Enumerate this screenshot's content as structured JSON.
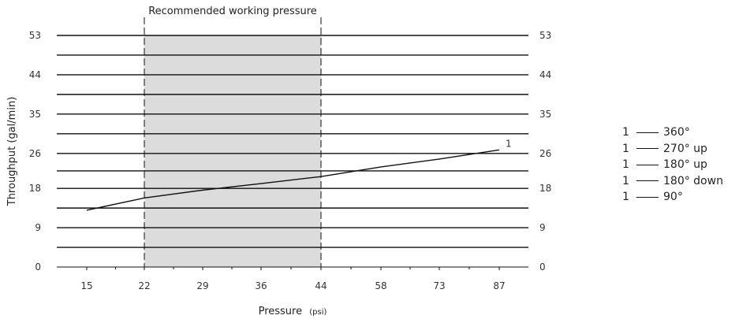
{
  "chart_data": {
    "type": "line",
    "title": "",
    "xlabel": "Pressure",
    "xlabel_unit": "(psi)",
    "ylabel": "Throughput  (gal/min)",
    "x_ticks": [
      "15",
      "22",
      "29",
      "36",
      "44",
      "58",
      "73",
      "87"
    ],
    "y_ticks": [
      0,
      9,
      18,
      26,
      35,
      44,
      53
    ],
    "ylim": [
      0,
      53
    ],
    "grid": "horizontal",
    "band": {
      "label": "Recommended working pressure",
      "from": "22",
      "to": "44",
      "color": "#dcdcdc"
    },
    "series": [
      {
        "name": "1",
        "label": "1",
        "color": "#111111",
        "points": [
          {
            "x": "15",
            "y": 13.0
          },
          {
            "x": "22",
            "y": 15.8
          },
          {
            "x": "29",
            "y": 17.6
          },
          {
            "x": "36",
            "y": 19.1
          },
          {
            "x": "44",
            "y": 20.7
          },
          {
            "x": "58",
            "y": 22.9
          },
          {
            "x": "73",
            "y": 24.7
          },
          {
            "x": "87",
            "y": 26.8
          }
        ]
      }
    ],
    "legend_placement": "right",
    "legend": [
      {
        "num": "1",
        "label": "360°"
      },
      {
        "num": "1",
        "label": "270° up"
      },
      {
        "num": "1",
        "label": "180° up"
      },
      {
        "num": "1",
        "label": "180° down"
      },
      {
        "num": "1",
        "label": "90°"
      }
    ]
  }
}
